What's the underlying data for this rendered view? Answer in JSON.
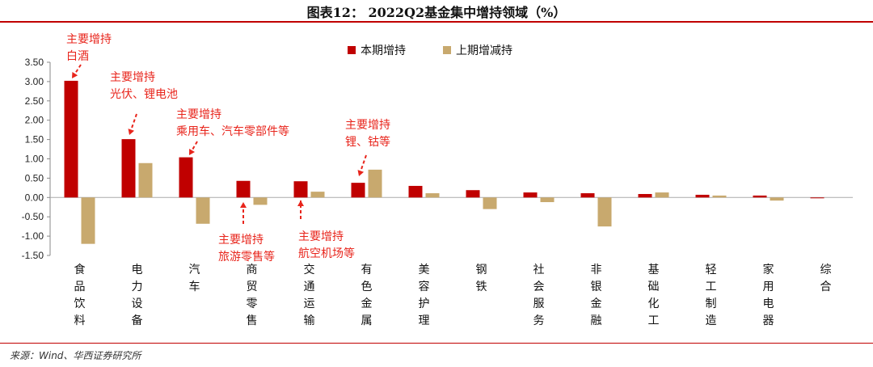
{
  "title": "图表12： 2022Q2基金集中增持领域（%）",
  "source": "来源：Wind、华西证券研究所",
  "chart_data": {
    "type": "bar",
    "categories": [
      "食品饮料",
      "电力设备",
      "汽车",
      "商贸零售",
      "交通运输",
      "有色金属",
      "美容护理",
      "钢铁",
      "社会服务",
      "非银金融",
      "基础化工",
      "轻工制造",
      "家用电器",
      "综合"
    ],
    "series": [
      {
        "name": "本期增持",
        "color": "#c00000",
        "values": [
          3.02,
          1.51,
          1.04,
          0.43,
          0.42,
          0.38,
          0.3,
          0.19,
          0.13,
          0.11,
          0.09,
          0.07,
          0.05,
          -0.02
        ]
      },
      {
        "name": "上期增减持",
        "color": "#c8a96e",
        "values": [
          -1.2,
          0.89,
          -0.68,
          -0.19,
          0.15,
          0.72,
          0.11,
          -0.3,
          -0.12,
          -0.75,
          0.13,
          0.05,
          -0.08,
          0.0
        ]
      }
    ],
    "yticks": [
      "3.50",
      "3.00",
      "2.50",
      "2.00",
      "1.50",
      "1.00",
      "0.50",
      "0.00",
      "-0.50",
      "-1.00",
      "-1.50"
    ],
    "ylim": [
      -1.5,
      3.5
    ],
    "legend_position": "top",
    "annotations": [
      {
        "category": "食品饮料",
        "lines": [
          "主要增持",
          "白酒"
        ],
        "above": true
      },
      {
        "category": "电力设备",
        "lines": [
          "主要增持",
          "光伏、锂电池"
        ],
        "above": true
      },
      {
        "category": "汽车",
        "lines": [
          "主要增持",
          "乘用车、汽车零部件等"
        ],
        "above": true
      },
      {
        "category": "商贸零售",
        "lines": [
          "主要增持",
          "旅游零售等"
        ],
        "above": false
      },
      {
        "category": "交通运输",
        "lines": [
          "主要增持",
          "航空机场等"
        ],
        "above": false
      },
      {
        "category": "有色金属",
        "lines": [
          "主要增持",
          "锂、钴等"
        ],
        "above": true
      }
    ],
    "annotation_color": "#e8251c"
  }
}
